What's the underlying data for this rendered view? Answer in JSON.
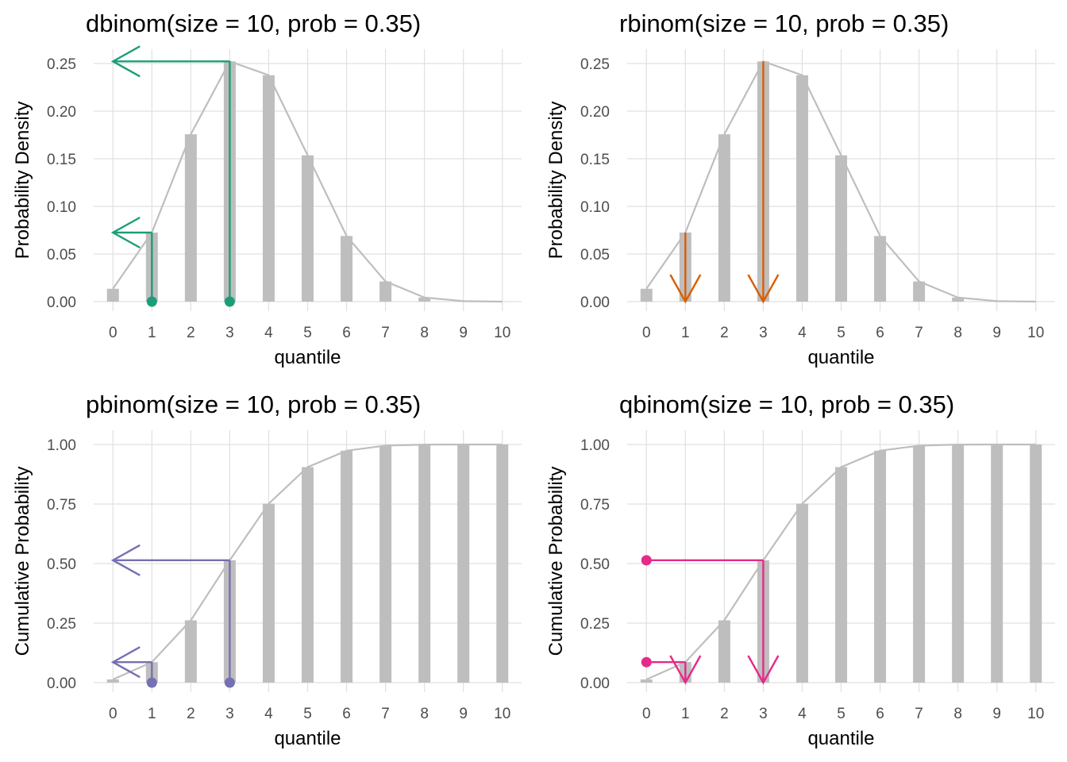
{
  "chart_data": [
    {
      "type": "bar",
      "title": "dbinom(size = 10, prob = 0.35)",
      "xlabel": "quantile",
      "ylabel": "Probability Density",
      "x": [
        0,
        1,
        2,
        3,
        4,
        5,
        6,
        7,
        8,
        9,
        10
      ],
      "xticks": [
        "0",
        "1",
        "2",
        "3",
        "4",
        "5",
        "6",
        "7",
        "8",
        "9",
        "10"
      ],
      "ylim": [
        0,
        0.26
      ],
      "yticks": [
        0,
        0.05,
        0.1,
        0.15,
        0.2,
        0.25
      ],
      "ytick_labels": [
        "0.00",
        "0.05",
        "0.10",
        "0.15",
        "0.20",
        "0.25"
      ],
      "values": [
        0.0135,
        0.0725,
        0.1757,
        0.2522,
        0.2377,
        0.1536,
        0.0689,
        0.0212,
        0.0043,
        0.0005,
        3e-05
      ],
      "bar_color": "#bebebe",
      "line_color": "#bebebe",
      "grid": true,
      "highlight": {
        "mode": "d",
        "points": [
          1,
          3
        ],
        "color": "#1b9e77"
      }
    },
    {
      "type": "bar",
      "title": "rbinom(size = 10, prob = 0.35)",
      "xlabel": "quantile",
      "ylabel": "Probability Density",
      "x": [
        0,
        1,
        2,
        3,
        4,
        5,
        6,
        7,
        8,
        9,
        10
      ],
      "xticks": [
        "0",
        "1",
        "2",
        "3",
        "4",
        "5",
        "6",
        "7",
        "8",
        "9",
        "10"
      ],
      "ylim": [
        0,
        0.26
      ],
      "yticks": [
        0,
        0.05,
        0.1,
        0.15,
        0.2,
        0.25
      ],
      "ytick_labels": [
        "0.00",
        "0.05",
        "0.10",
        "0.15",
        "0.20",
        "0.25"
      ],
      "values": [
        0.0135,
        0.0725,
        0.1757,
        0.2522,
        0.2377,
        0.1536,
        0.0689,
        0.0212,
        0.0043,
        0.0005,
        3e-05
      ],
      "bar_color": "#bebebe",
      "line_color": "#bebebe",
      "grid": true,
      "highlight": {
        "mode": "r",
        "points": [
          1,
          3
        ],
        "color": "#d95f02"
      }
    },
    {
      "type": "bar",
      "title": "pbinom(size = 10, prob = 0.35)",
      "xlabel": "quantile",
      "ylabel": "Cumulative Probability",
      "x": [
        0,
        1,
        2,
        3,
        4,
        5,
        6,
        7,
        8,
        9,
        10
      ],
      "xticks": [
        "0",
        "1",
        "2",
        "3",
        "4",
        "5",
        "6",
        "7",
        "8",
        "9",
        "10"
      ],
      "ylim": [
        0,
        1.04
      ],
      "yticks": [
        0,
        0.25,
        0.5,
        0.75,
        1
      ],
      "ytick_labels": [
        "0.00",
        "0.25",
        "0.50",
        "0.75",
        "1.00"
      ],
      "values": [
        0.0135,
        0.086,
        0.2616,
        0.5138,
        0.7515,
        0.9051,
        0.974,
        0.9952,
        0.9995,
        1.0,
        1.0
      ],
      "bar_color": "#bebebe",
      "line_color": "#bebebe",
      "grid": true,
      "highlight": {
        "mode": "p",
        "points": [
          1,
          3
        ],
        "color": "#7570b3"
      }
    },
    {
      "type": "bar",
      "title": "qbinom(size = 10, prob = 0.35)",
      "xlabel": "quantile",
      "ylabel": "Cumulative Probability",
      "x": [
        0,
        1,
        2,
        3,
        4,
        5,
        6,
        7,
        8,
        9,
        10
      ],
      "xticks": [
        "0",
        "1",
        "2",
        "3",
        "4",
        "5",
        "6",
        "7",
        "8",
        "9",
        "10"
      ],
      "ylim": [
        0,
        1.04
      ],
      "yticks": [
        0,
        0.25,
        0.5,
        0.75,
        1
      ],
      "ytick_labels": [
        "0.00",
        "0.25",
        "0.50",
        "0.75",
        "1.00"
      ],
      "values": [
        0.0135,
        0.086,
        0.2616,
        0.5138,
        0.7515,
        0.9051,
        0.974,
        0.9952,
        0.9995,
        1.0,
        1.0
      ],
      "bar_color": "#bebebe",
      "line_color": "#bebebe",
      "grid": true,
      "highlight": {
        "mode": "q",
        "points": [
          1,
          3
        ],
        "color": "#e7298a"
      }
    }
  ]
}
